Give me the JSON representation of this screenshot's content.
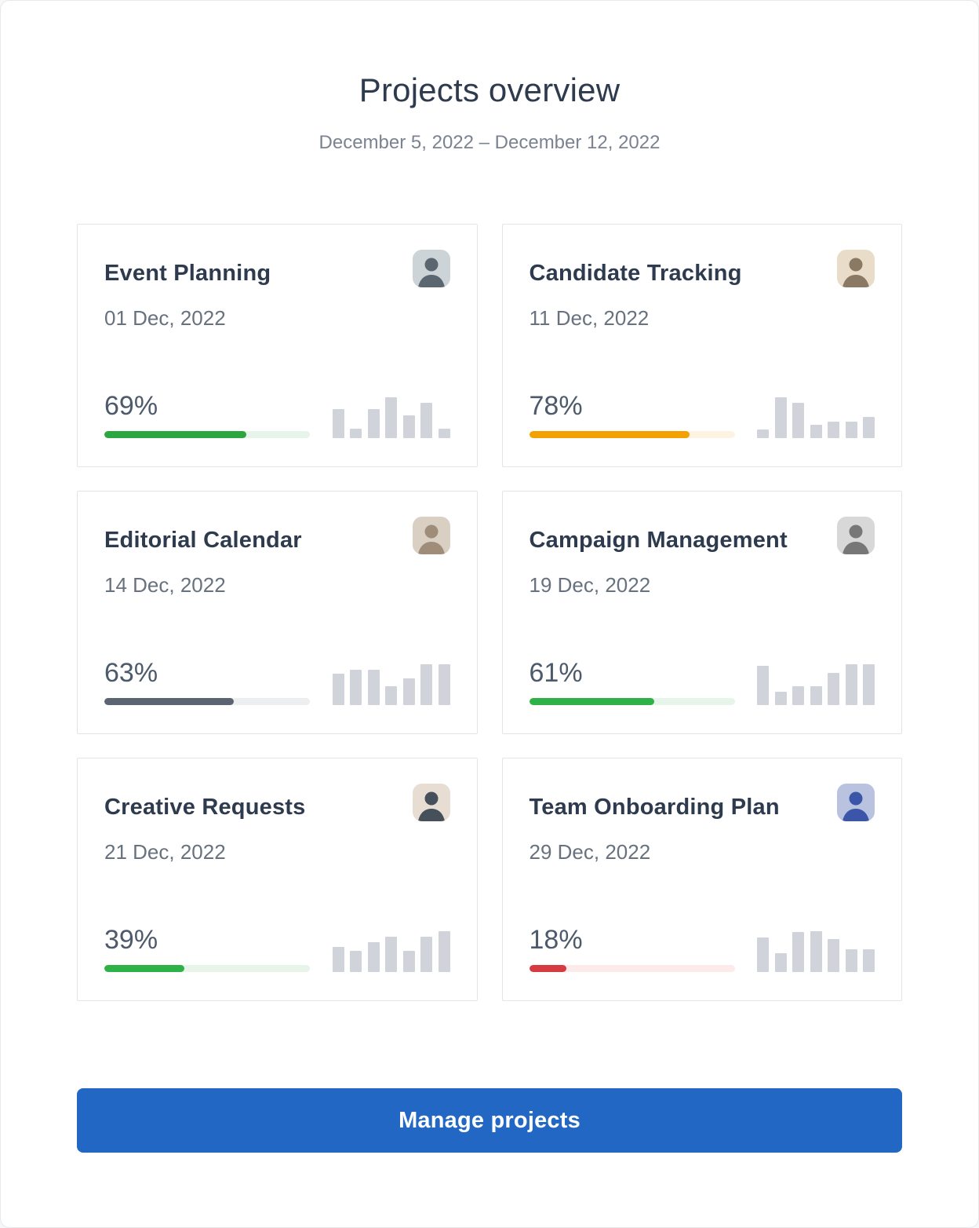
{
  "page": {
    "title": "Projects overview",
    "subtitle": "December 5, 2022 – December 12, 2022"
  },
  "projects": [
    {
      "name": "Event Planning",
      "date": "01 Dec, 2022",
      "percent_label": "69%",
      "percent_value": 69,
      "bar_color": "#2ca63e",
      "track_color": "#e7f4e9",
      "avatar": "woman-short-blonde-hair-photo",
      "avatar_bg": "#ccd4d8",
      "avatar_fg": "#5b6770",
      "chart": [
        72,
        24,
        72,
        100,
        55,
        86,
        24
      ]
    },
    {
      "name": "Candidate Tracking",
      "date": "11 Dec, 2022",
      "percent_label": "78%",
      "percent_value": 78,
      "bar_color": "#f2a100",
      "track_color": "#fdf3e3",
      "avatar": "man-short-hair-photo",
      "avatar_bg": "#e9dcc9",
      "avatar_fg": "#8a7a64",
      "chart": [
        21,
        100,
        86,
        33,
        41,
        41,
        52
      ]
    },
    {
      "name": "Editorial Calendar",
      "date": "14 Dec, 2022",
      "percent_label": "63%",
      "percent_value": 63,
      "bar_color": "#5a6473",
      "track_color": "#eceef0",
      "avatar": "woman-long-hair-photo",
      "avatar_bg": "#d9cfc3",
      "avatar_fg": "#a08d79",
      "chart": [
        76,
        86,
        86,
        47,
        66,
        100,
        100
      ]
    },
    {
      "name": "Campaign Management",
      "date": "19 Dec, 2022",
      "percent_label": "61%",
      "percent_value": 61,
      "bar_color": "#2eb247",
      "track_color": "#e7f4e9",
      "avatar": "bearded-man-grayscale-photo",
      "avatar_bg": "#d8d8d8",
      "avatar_fg": "#777777",
      "chart": [
        97,
        33,
        47,
        47,
        79,
        100,
        100
      ]
    },
    {
      "name": "Creative Requests",
      "date": "21 Dec, 2022",
      "percent_label": "39%",
      "percent_value": 39,
      "bar_color": "#2eb247",
      "track_color": "#e7f4e9",
      "avatar": "woman-dark-hair-photo",
      "avatar_bg": "#e7ddd2",
      "avatar_fg": "#46505a",
      "chart": [
        61,
        51,
        74,
        86,
        51,
        86,
        100
      ]
    },
    {
      "name": "Team Onboarding Plan",
      "date": "29 Dec, 2022",
      "percent_label": "18%",
      "percent_value": 18,
      "bar_color": "#d63b41",
      "track_color": "#fcebea",
      "avatar": "young-man-blue-shirt-photo",
      "avatar_bg": "#b9c3df",
      "avatar_fg": "#3b55a8",
      "chart": [
        85,
        47,
        99,
        100,
        80,
        56,
        55
      ]
    }
  ],
  "footer": {
    "manage_button_label": "Manage projects",
    "button_color": "#2267c3"
  }
}
